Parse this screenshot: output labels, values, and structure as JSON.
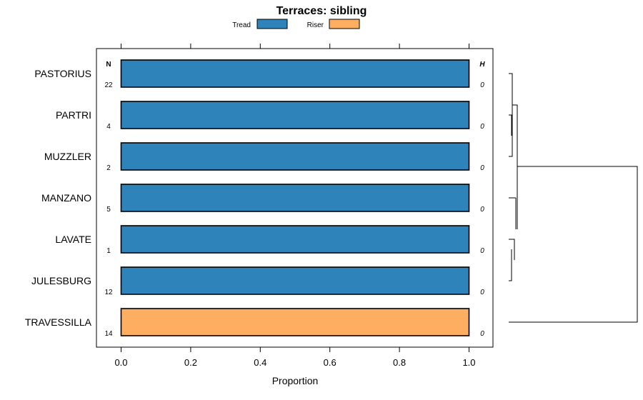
{
  "chart_data": {
    "type": "bar",
    "orientation": "horizontal",
    "stacked": true,
    "title": "Terraces: sibling",
    "xlabel": "Proportion",
    "ylabel": "",
    "xlim": [
      0,
      1
    ],
    "xticks": [
      "0.0",
      "0.2",
      "0.4",
      "0.6",
      "0.8",
      "1.0"
    ],
    "xtick_values": [
      0,
      0.2,
      0.4,
      0.6,
      0.8,
      1.0
    ],
    "legend": {
      "placement": "top",
      "entries": [
        {
          "name": "Tread",
          "color": "#2e83ba"
        },
        {
          "name": "Riser",
          "color": "#fdae61"
        }
      ]
    },
    "n_header": "N",
    "h_header": "H",
    "categories": [
      "PASTORIUS",
      "PARTRI",
      "MUZZLER",
      "MANZANO",
      "LAVATE",
      "JULESBURG",
      "TRAVESSILLA"
    ],
    "n_values": [
      "22",
      "4",
      "2",
      "5",
      "1",
      "12",
      "14"
    ],
    "h_values": [
      "0",
      "0",
      "0",
      "0",
      "0",
      "0",
      "0"
    ],
    "series": [
      {
        "name": "Tread",
        "color": "#2e83ba",
        "values": [
          1,
          1,
          1,
          1,
          1,
          1,
          0
        ]
      },
      {
        "name": "Riser",
        "color": "#fdae61",
        "values": [
          0,
          0,
          0,
          0,
          0,
          0,
          1
        ]
      }
    ],
    "dendrogram": {
      "groups": [
        [
          "PASTORIUS",
          "PARTRI",
          "MUZZLER"
        ],
        [
          "MANZANO",
          "LAVATE",
          "JULESBURG"
        ],
        [
          "TRAVESSILLA"
        ]
      ]
    }
  }
}
